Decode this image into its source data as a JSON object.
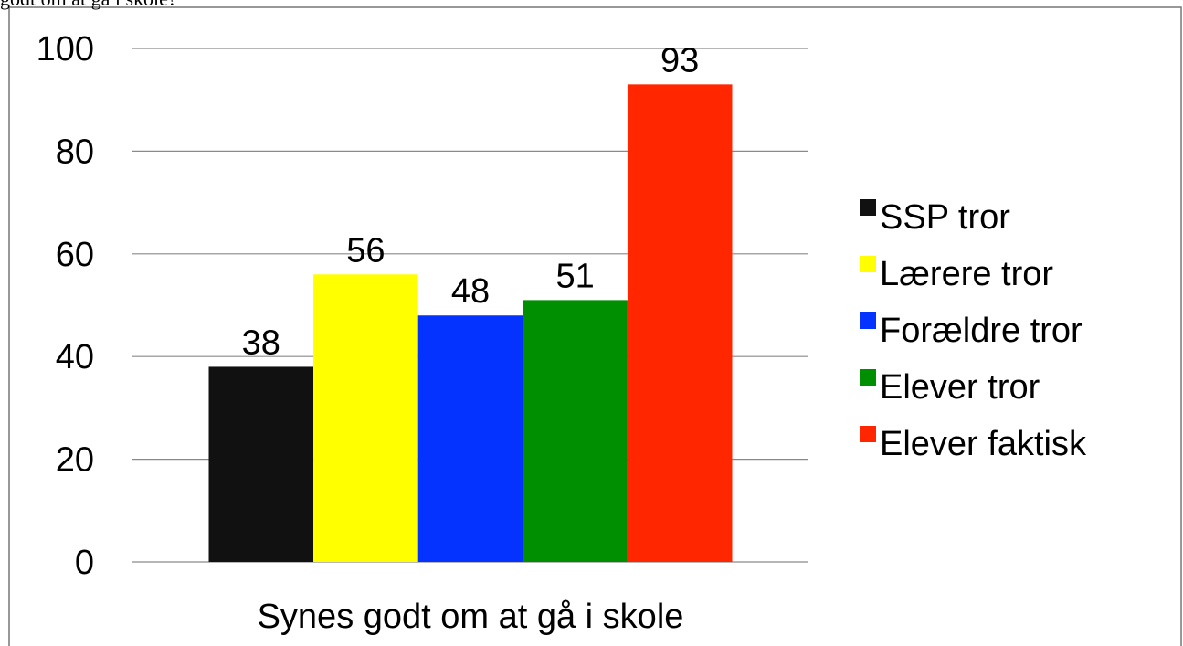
{
  "chart_data": {
    "type": "bar",
    "title": "godt om at gå i skole?",
    "categories": [
      "Synes godt om at gå i skole"
    ],
    "series": [
      {
        "name": "SSP tror",
        "color": "#111111",
        "values": [
          38
        ]
      },
      {
        "name": "Lærere tror",
        "color": "#ffff00",
        "values": [
          56
        ]
      },
      {
        "name": "Forældre tror",
        "color": "#0433ff",
        "values": [
          48
        ]
      },
      {
        "name": "Elever tror",
        "color": "#008f00",
        "values": [
          51
        ]
      },
      {
        "name": "Elever faktisk",
        "color": "#ff2600",
        "values": [
          93
        ]
      }
    ],
    "ylim": [
      0,
      100
    ],
    "yticks": [
      0,
      20,
      40,
      60,
      80,
      100
    ],
    "grid": true,
    "legend": "right"
  }
}
